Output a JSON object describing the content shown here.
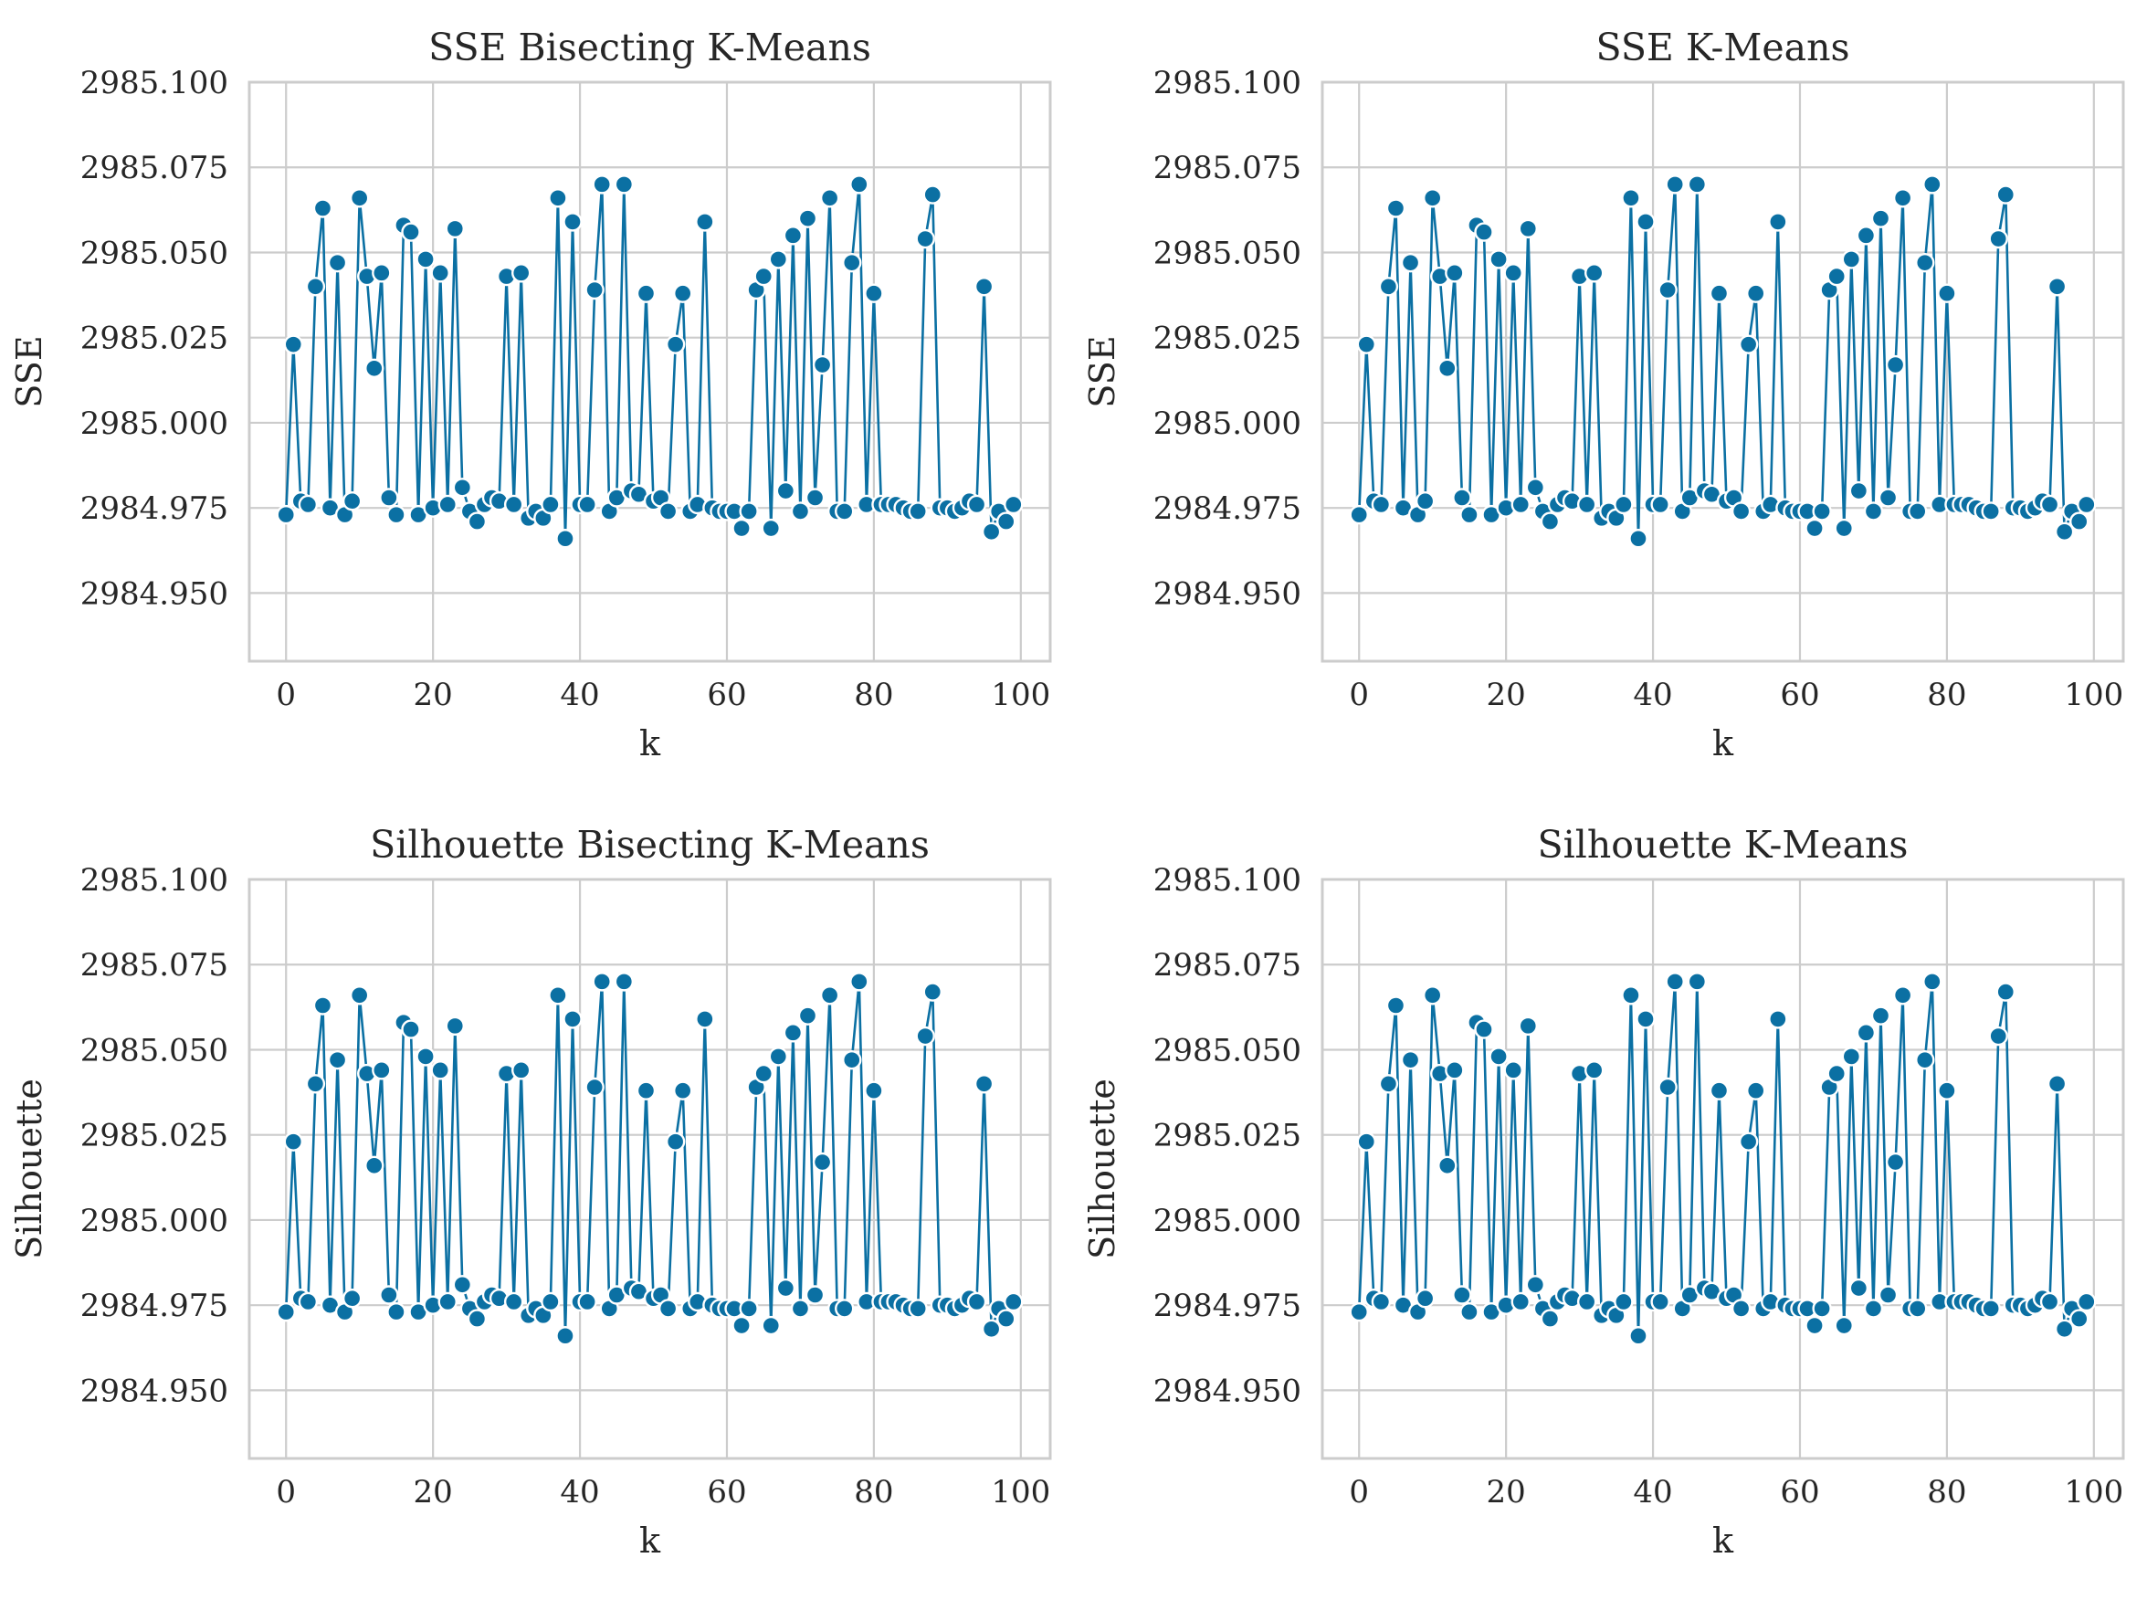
{
  "figure": {
    "background": "#ffffff",
    "line_color": "#0b70a3",
    "grid_color": "#cccccc"
  },
  "chart_data": [
    {
      "type": "line",
      "title": "SSE Bisecting K-Means",
      "xlabel": "k",
      "ylabel": "SSE",
      "xlim": [
        -5,
        104
      ],
      "ylim": [
        2984.93,
        2985.1
      ],
      "xticks": [
        0,
        20,
        40,
        60,
        80,
        100
      ],
      "yticks": [
        "2984.950",
        "2984.975",
        "2985.000",
        "2985.025",
        "2985.050",
        "2985.075",
        "2985.100"
      ],
      "grid": true,
      "marker": "circle",
      "color": "#0b70a3",
      "series": [
        {
          "x": [
            0,
            1,
            2,
            3,
            4,
            5,
            6,
            7,
            8,
            9,
            10,
            11,
            12,
            13,
            14,
            15,
            16,
            17,
            18,
            19,
            20,
            21,
            22,
            23,
            24,
            25,
            26,
            27,
            28,
            29,
            30,
            31,
            32,
            33,
            34,
            35,
            36,
            37,
            38,
            39,
            40,
            41,
            42,
            43,
            44,
            45,
            46,
            47,
            48,
            49,
            50,
            51,
            52,
            53,
            54,
            55,
            56,
            57,
            58,
            59,
            60,
            61,
            62,
            63,
            64,
            65,
            66,
            67,
            68,
            69,
            70,
            71,
            72,
            73,
            74,
            75,
            76,
            77,
            78,
            79,
            80,
            81,
            82,
            83,
            84,
            85,
            86,
            87,
            88,
            89,
            90,
            91,
            92,
            93,
            94,
            95,
            96,
            97,
            98,
            99
          ],
          "values": [
            2984.973,
            2985.023,
            2984.977,
            2984.976,
            2985.04,
            2985.063,
            2984.975,
            2985.047,
            2984.973,
            2984.977,
            2985.066,
            2985.043,
            2985.016,
            2985.044,
            2984.978,
            2984.973,
            2985.058,
            2985.056,
            2984.973,
            2985.048,
            2984.975,
            2985.044,
            2984.976,
            2985.057,
            2984.981,
            2984.974,
            2984.971,
            2984.976,
            2984.978,
            2984.977,
            2985.043,
            2984.976,
            2985.044,
            2984.972,
            2984.974,
            2984.972,
            2984.976,
            2985.066,
            2984.966,
            2985.059,
            2984.976,
            2984.976,
            2985.039,
            2985.07,
            2984.974,
            2984.978,
            2985.07,
            2984.98,
            2984.979,
            2985.038,
            2984.977,
            2984.978,
            2984.974,
            2985.023,
            2985.038,
            2984.974,
            2984.976,
            2985.059,
            2984.975,
            2984.974,
            2984.974,
            2984.974,
            2984.969,
            2984.974,
            2985.039,
            2985.043,
            2984.969,
            2985.048,
            2984.98,
            2985.055,
            2984.974,
            2985.06,
            2984.978,
            2985.017,
            2985.066,
            2984.974,
            2984.974,
            2985.047,
            2985.07,
            2984.976,
            2985.038,
            2984.976,
            2984.976,
            2984.976,
            2984.975,
            2984.974,
            2984.974,
            2985.054,
            2985.067,
            2984.975,
            2984.975,
            2984.974,
            2984.975,
            2984.977,
            2984.976,
            2985.04,
            2984.968,
            2984.974,
            2984.971,
            2984.976
          ]
        }
      ]
    },
    {
      "type": "line",
      "title": "SSE K-Means",
      "xlabel": "k",
      "ylabel": "SSE",
      "xlim": [
        -5,
        104
      ],
      "ylim": [
        2984.93,
        2985.1
      ],
      "xticks": [
        0,
        20,
        40,
        60,
        80,
        100
      ],
      "yticks": [
        "2984.950",
        "2984.975",
        "2985.000",
        "2985.025",
        "2985.050",
        "2985.075",
        "2985.100"
      ],
      "grid": true,
      "marker": "circle",
      "color": "#0b70a3",
      "series": [
        {
          "x": [
            0,
            1,
            2,
            3,
            4,
            5,
            6,
            7,
            8,
            9,
            10,
            11,
            12,
            13,
            14,
            15,
            16,
            17,
            18,
            19,
            20,
            21,
            22,
            23,
            24,
            25,
            26,
            27,
            28,
            29,
            30,
            31,
            32,
            33,
            34,
            35,
            36,
            37,
            38,
            39,
            40,
            41,
            42,
            43,
            44,
            45,
            46,
            47,
            48,
            49,
            50,
            51,
            52,
            53,
            54,
            55,
            56,
            57,
            58,
            59,
            60,
            61,
            62,
            63,
            64,
            65,
            66,
            67,
            68,
            69,
            70,
            71,
            72,
            73,
            74,
            75,
            76,
            77,
            78,
            79,
            80,
            81,
            82,
            83,
            84,
            85,
            86,
            87,
            88,
            89,
            90,
            91,
            92,
            93,
            94,
            95,
            96,
            97,
            98,
            99
          ],
          "values": [
            2984.973,
            2985.023,
            2984.977,
            2984.976,
            2985.04,
            2985.063,
            2984.975,
            2985.047,
            2984.973,
            2984.977,
            2985.066,
            2985.043,
            2985.016,
            2985.044,
            2984.978,
            2984.973,
            2985.058,
            2985.056,
            2984.973,
            2985.048,
            2984.975,
            2985.044,
            2984.976,
            2985.057,
            2984.981,
            2984.974,
            2984.971,
            2984.976,
            2984.978,
            2984.977,
            2985.043,
            2984.976,
            2985.044,
            2984.972,
            2984.974,
            2984.972,
            2984.976,
            2985.066,
            2984.966,
            2985.059,
            2984.976,
            2984.976,
            2985.039,
            2985.07,
            2984.974,
            2984.978,
            2985.07,
            2984.98,
            2984.979,
            2985.038,
            2984.977,
            2984.978,
            2984.974,
            2985.023,
            2985.038,
            2984.974,
            2984.976,
            2985.059,
            2984.975,
            2984.974,
            2984.974,
            2984.974,
            2984.969,
            2984.974,
            2985.039,
            2985.043,
            2984.969,
            2985.048,
            2984.98,
            2985.055,
            2984.974,
            2985.06,
            2984.978,
            2985.017,
            2985.066,
            2984.974,
            2984.974,
            2985.047,
            2985.07,
            2984.976,
            2985.038,
            2984.976,
            2984.976,
            2984.976,
            2984.975,
            2984.974,
            2984.974,
            2985.054,
            2985.067,
            2984.975,
            2984.975,
            2984.974,
            2984.975,
            2984.977,
            2984.976,
            2985.04,
            2984.968,
            2984.974,
            2984.971,
            2984.976
          ]
        }
      ]
    },
    {
      "type": "line",
      "title": "Silhouette Bisecting K-Means",
      "xlabel": "k",
      "ylabel": "Silhouette",
      "xlim": [
        -5,
        104
      ],
      "ylim": [
        2984.93,
        2985.1
      ],
      "xticks": [
        0,
        20,
        40,
        60,
        80,
        100
      ],
      "yticks": [
        "2984.950",
        "2984.975",
        "2985.000",
        "2985.025",
        "2985.050",
        "2985.075",
        "2985.100"
      ],
      "grid": true,
      "marker": "circle",
      "color": "#0b70a3",
      "series": [
        {
          "x": [
            0,
            1,
            2,
            3,
            4,
            5,
            6,
            7,
            8,
            9,
            10,
            11,
            12,
            13,
            14,
            15,
            16,
            17,
            18,
            19,
            20,
            21,
            22,
            23,
            24,
            25,
            26,
            27,
            28,
            29,
            30,
            31,
            32,
            33,
            34,
            35,
            36,
            37,
            38,
            39,
            40,
            41,
            42,
            43,
            44,
            45,
            46,
            47,
            48,
            49,
            50,
            51,
            52,
            53,
            54,
            55,
            56,
            57,
            58,
            59,
            60,
            61,
            62,
            63,
            64,
            65,
            66,
            67,
            68,
            69,
            70,
            71,
            72,
            73,
            74,
            75,
            76,
            77,
            78,
            79,
            80,
            81,
            82,
            83,
            84,
            85,
            86,
            87,
            88,
            89,
            90,
            91,
            92,
            93,
            94,
            95,
            96,
            97,
            98,
            99
          ],
          "values": [
            2984.973,
            2985.023,
            2984.977,
            2984.976,
            2985.04,
            2985.063,
            2984.975,
            2985.047,
            2984.973,
            2984.977,
            2985.066,
            2985.043,
            2985.016,
            2985.044,
            2984.978,
            2984.973,
            2985.058,
            2985.056,
            2984.973,
            2985.048,
            2984.975,
            2985.044,
            2984.976,
            2985.057,
            2984.981,
            2984.974,
            2984.971,
            2984.976,
            2984.978,
            2984.977,
            2985.043,
            2984.976,
            2985.044,
            2984.972,
            2984.974,
            2984.972,
            2984.976,
            2985.066,
            2984.966,
            2985.059,
            2984.976,
            2984.976,
            2985.039,
            2985.07,
            2984.974,
            2984.978,
            2985.07,
            2984.98,
            2984.979,
            2985.038,
            2984.977,
            2984.978,
            2984.974,
            2985.023,
            2985.038,
            2984.974,
            2984.976,
            2985.059,
            2984.975,
            2984.974,
            2984.974,
            2984.974,
            2984.969,
            2984.974,
            2985.039,
            2985.043,
            2984.969,
            2985.048,
            2984.98,
            2985.055,
            2984.974,
            2985.06,
            2984.978,
            2985.017,
            2985.066,
            2984.974,
            2984.974,
            2985.047,
            2985.07,
            2984.976,
            2985.038,
            2984.976,
            2984.976,
            2984.976,
            2984.975,
            2984.974,
            2984.974,
            2985.054,
            2985.067,
            2984.975,
            2984.975,
            2984.974,
            2984.975,
            2984.977,
            2984.976,
            2985.04,
            2984.968,
            2984.974,
            2984.971,
            2984.976
          ]
        }
      ]
    },
    {
      "type": "line",
      "title": "Silhouette K-Means",
      "xlabel": "k",
      "ylabel": "Silhouette",
      "xlim": [
        -5,
        104
      ],
      "ylim": [
        2984.93,
        2985.1
      ],
      "xticks": [
        0,
        20,
        40,
        60,
        80,
        100
      ],
      "yticks": [
        "2984.950",
        "2984.975",
        "2985.000",
        "2985.025",
        "2985.050",
        "2985.075",
        "2985.100"
      ],
      "grid": true,
      "marker": "circle",
      "color": "#0b70a3",
      "series": [
        {
          "x": [
            0,
            1,
            2,
            3,
            4,
            5,
            6,
            7,
            8,
            9,
            10,
            11,
            12,
            13,
            14,
            15,
            16,
            17,
            18,
            19,
            20,
            21,
            22,
            23,
            24,
            25,
            26,
            27,
            28,
            29,
            30,
            31,
            32,
            33,
            34,
            35,
            36,
            37,
            38,
            39,
            40,
            41,
            42,
            43,
            44,
            45,
            46,
            47,
            48,
            49,
            50,
            51,
            52,
            53,
            54,
            55,
            56,
            57,
            58,
            59,
            60,
            61,
            62,
            63,
            64,
            65,
            66,
            67,
            68,
            69,
            70,
            71,
            72,
            73,
            74,
            75,
            76,
            77,
            78,
            79,
            80,
            81,
            82,
            83,
            84,
            85,
            86,
            87,
            88,
            89,
            90,
            91,
            92,
            93,
            94,
            95,
            96,
            97,
            98,
            99
          ],
          "values": [
            2984.973,
            2985.023,
            2984.977,
            2984.976,
            2985.04,
            2985.063,
            2984.975,
            2985.047,
            2984.973,
            2984.977,
            2985.066,
            2985.043,
            2985.016,
            2985.044,
            2984.978,
            2984.973,
            2985.058,
            2985.056,
            2984.973,
            2985.048,
            2984.975,
            2985.044,
            2984.976,
            2985.057,
            2984.981,
            2984.974,
            2984.971,
            2984.976,
            2984.978,
            2984.977,
            2985.043,
            2984.976,
            2985.044,
            2984.972,
            2984.974,
            2984.972,
            2984.976,
            2985.066,
            2984.966,
            2985.059,
            2984.976,
            2984.976,
            2985.039,
            2985.07,
            2984.974,
            2984.978,
            2985.07,
            2984.98,
            2984.979,
            2985.038,
            2984.977,
            2984.978,
            2984.974,
            2985.023,
            2985.038,
            2984.974,
            2984.976,
            2985.059,
            2984.975,
            2984.974,
            2984.974,
            2984.974,
            2984.969,
            2984.974,
            2985.039,
            2985.043,
            2984.969,
            2985.048,
            2984.98,
            2985.055,
            2984.974,
            2985.06,
            2984.978,
            2985.017,
            2985.066,
            2984.974,
            2984.974,
            2985.047,
            2985.07,
            2984.976,
            2985.038,
            2984.976,
            2984.976,
            2984.976,
            2984.975,
            2984.974,
            2984.974,
            2985.054,
            2985.067,
            2984.975,
            2984.975,
            2984.974,
            2984.975,
            2984.977,
            2984.976,
            2985.04,
            2984.968,
            2984.974,
            2984.971,
            2984.976
          ]
        }
      ]
    }
  ]
}
